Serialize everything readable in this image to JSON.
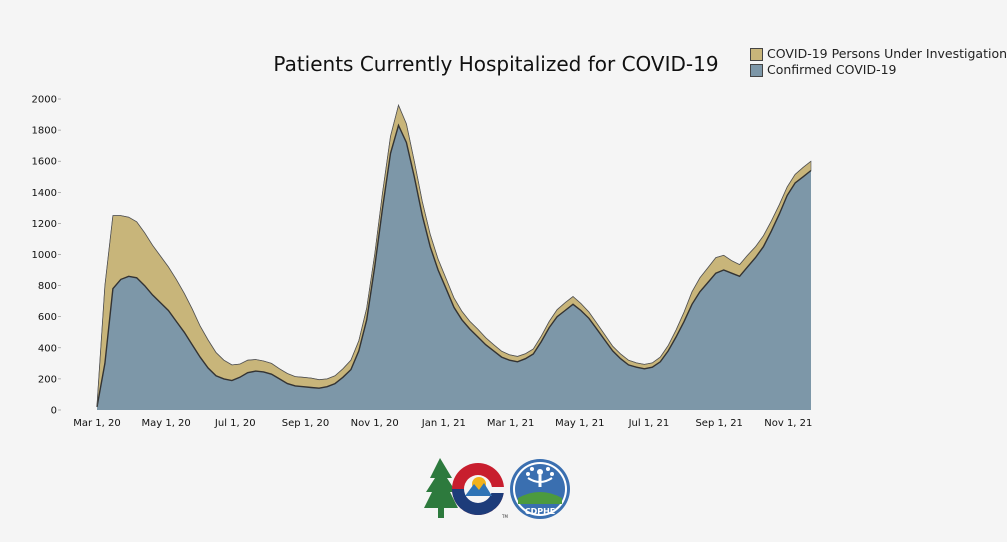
{
  "chart_data": {
    "type": "area",
    "title": "Patients Currently Hospitalized for COVID-19",
    "xlabel": "",
    "ylabel": "",
    "ylim": [
      0,
      2000
    ],
    "yticks": [
      0,
      200,
      400,
      600,
      800,
      1000,
      1200,
      1400,
      1600,
      1800,
      2000
    ],
    "x_tick_labels": [
      "Mar 1, 20",
      "May 1, 20",
      "Jul 1, 20",
      "Sep 1, 20",
      "Nov 1, 20",
      "Jan 1, 21",
      "Mar 1, 21",
      "May 1, 21",
      "Jul 1, 21",
      "Sep 1, 21",
      "Nov 1, 21"
    ],
    "stacked": true,
    "legend_position": "top-right",
    "grid": false,
    "x": [
      "2020-03-01",
      "2020-03-08",
      "2020-03-15",
      "2020-03-22",
      "2020-03-29",
      "2020-04-05",
      "2020-04-12",
      "2020-04-19",
      "2020-04-26",
      "2020-05-03",
      "2020-05-10",
      "2020-05-17",
      "2020-05-24",
      "2020-05-31",
      "2020-06-07",
      "2020-06-14",
      "2020-06-21",
      "2020-06-28",
      "2020-07-05",
      "2020-07-12",
      "2020-07-19",
      "2020-07-26",
      "2020-08-02",
      "2020-08-09",
      "2020-08-16",
      "2020-08-23",
      "2020-08-30",
      "2020-09-06",
      "2020-09-13",
      "2020-09-20",
      "2020-09-27",
      "2020-10-04",
      "2020-10-11",
      "2020-10-18",
      "2020-10-25",
      "2020-11-01",
      "2020-11-08",
      "2020-11-15",
      "2020-11-22",
      "2020-11-29",
      "2020-12-06",
      "2020-12-13",
      "2020-12-20",
      "2020-12-27",
      "2021-01-03",
      "2021-01-10",
      "2021-01-17",
      "2021-01-24",
      "2021-01-31",
      "2021-02-07",
      "2021-02-14",
      "2021-02-21",
      "2021-02-28",
      "2021-03-07",
      "2021-03-14",
      "2021-03-21",
      "2021-03-28",
      "2021-04-04",
      "2021-04-11",
      "2021-04-18",
      "2021-04-25",
      "2021-05-02",
      "2021-05-09",
      "2021-05-16",
      "2021-05-23",
      "2021-05-30",
      "2021-06-06",
      "2021-06-13",
      "2021-06-20",
      "2021-06-27",
      "2021-07-04",
      "2021-07-11",
      "2021-07-18",
      "2021-07-25",
      "2021-08-01",
      "2021-08-08",
      "2021-08-15",
      "2021-08-22",
      "2021-08-29",
      "2021-09-05",
      "2021-09-12",
      "2021-09-19",
      "2021-09-26",
      "2021-10-03",
      "2021-10-10",
      "2021-10-17",
      "2021-10-24",
      "2021-10-31",
      "2021-11-07",
      "2021-11-14",
      "2021-11-21"
    ],
    "series": [
      {
        "name": "Confirmed COVID-19",
        "color": "#7d97a8",
        "values": [
          20,
          300,
          780,
          840,
          860,
          850,
          800,
          740,
          690,
          640,
          570,
          500,
          420,
          340,
          270,
          220,
          200,
          190,
          210,
          240,
          250,
          245,
          230,
          200,
          170,
          155,
          150,
          145,
          140,
          150,
          170,
          210,
          260,
          380,
          580,
          920,
          1300,
          1650,
          1830,
          1720,
          1500,
          1250,
          1050,
          900,
          780,
          660,
          580,
          520,
          470,
          420,
          380,
          340,
          320,
          310,
          330,
          360,
          440,
          530,
          600,
          640,
          680,
          640,
          590,
          520,
          450,
          380,
          330,
          290,
          275,
          265,
          275,
          310,
          380,
          470,
          570,
          680,
          760,
          820,
          880,
          900,
          880,
          860,
          920,
          980,
          1050,
          1150,
          1260,
          1380,
          1460,
          1500,
          1540
        ]
      },
      {
        "name": "COVID-19 Persons Under Investigation",
        "color": "#c8b57a",
        "values": [
          10,
          500,
          470,
          410,
          380,
          360,
          340,
          320,
          300,
          280,
          270,
          250,
          230,
          200,
          180,
          150,
          120,
          100,
          85,
          80,
          75,
          70,
          70,
          65,
          65,
          60,
          60,
          60,
          55,
          50,
          50,
          55,
          60,
          65,
          75,
          80,
          100,
          110,
          130,
          120,
          100,
          90,
          80,
          70,
          65,
          60,
          55,
          50,
          50,
          45,
          40,
          38,
          35,
          35,
          32,
          32,
          35,
          40,
          45,
          50,
          50,
          45,
          40,
          38,
          35,
          30,
          30,
          30,
          28,
          28,
          28,
          30,
          35,
          45,
          60,
          80,
          90,
          95,
          100,
          95,
          80,
          75,
          75,
          70,
          70,
          65,
          60,
          55,
          55,
          60,
          60
        ]
      }
    ]
  },
  "legend": {
    "items": [
      {
        "label": "COVID-19 Persons Under Investigation",
        "color": "#c8b57a"
      },
      {
        "label": "Confirmed COVID-19",
        "color": "#7d97a8"
      }
    ]
  },
  "logos": {
    "cdphe_text": "CDPHE",
    "tm_text": "TM"
  }
}
